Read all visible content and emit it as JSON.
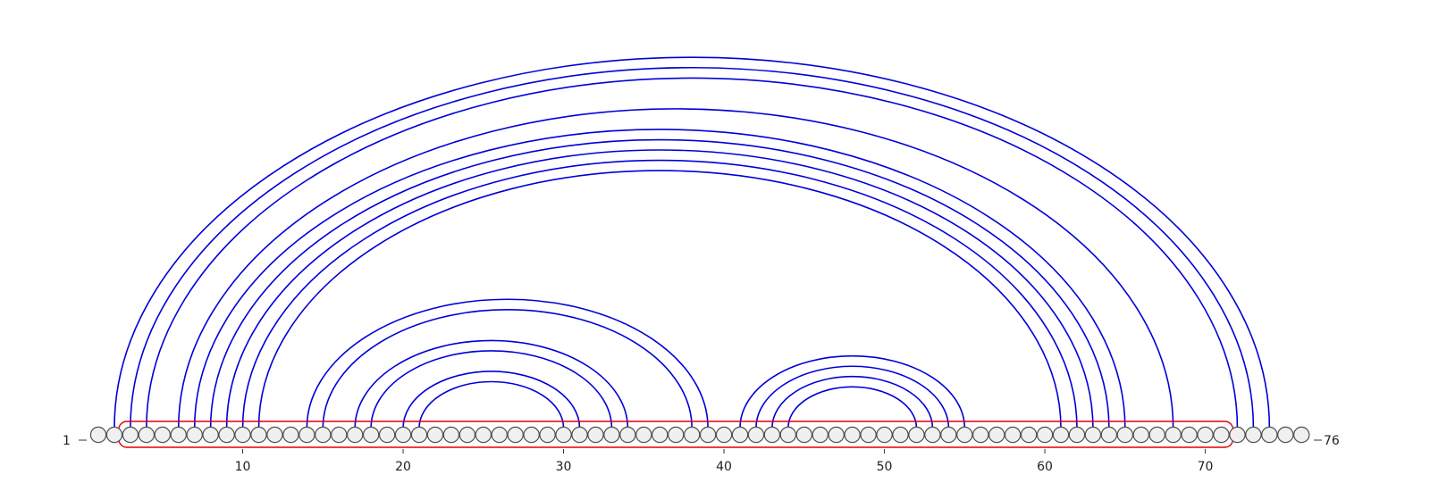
{
  "sequence": {
    "length": 76,
    "start_label": "1",
    "end_label": "76"
  },
  "axis": {
    "ticks": [
      10,
      20,
      30,
      40,
      50,
      60,
      70
    ],
    "tick_labels": [
      "10",
      "20",
      "30",
      "40",
      "50",
      "60",
      "70"
    ]
  },
  "highlight_region": {
    "start": 3,
    "end": 71
  },
  "colors": {
    "arc": "#0000d8",
    "nucleotide_fill": "#f0f0f0",
    "nucleotide_stroke": "#505050",
    "region": "#e00000"
  },
  "pairs": [
    [
      2,
      74
    ],
    [
      3,
      73
    ],
    [
      4,
      72
    ],
    [
      6,
      68
    ],
    [
      7,
      65
    ],
    [
      8,
      64
    ],
    [
      9,
      63
    ],
    [
      10,
      62
    ],
    [
      11,
      61
    ],
    [
      14,
      39
    ],
    [
      15,
      38
    ],
    [
      17,
      34
    ],
    [
      18,
      33
    ],
    [
      20,
      31
    ],
    [
      21,
      30
    ],
    [
      41,
      55
    ],
    [
      42,
      54
    ],
    [
      43,
      53
    ],
    [
      44,
      52
    ]
  ]
}
